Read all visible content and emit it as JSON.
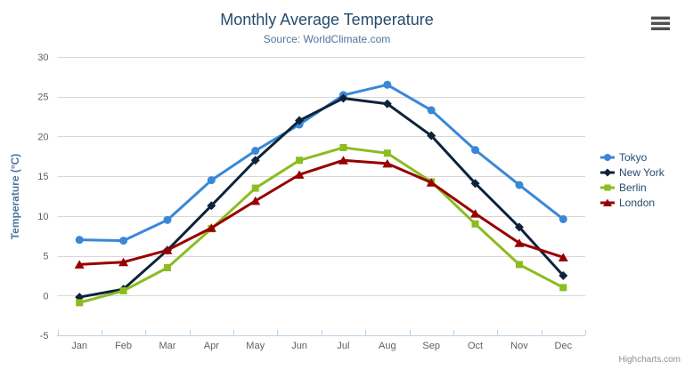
{
  "chart_data": {
    "type": "line",
    "title": "Monthly Average Temperature",
    "subtitle": "Source: WorldClimate.com",
    "categories": [
      "Jan",
      "Feb",
      "Mar",
      "Apr",
      "May",
      "Jun",
      "Jul",
      "Aug",
      "Sep",
      "Oct",
      "Nov",
      "Dec"
    ],
    "series": [
      {
        "name": "Tokyo",
        "color": "#3a87d8",
        "marker": "circle",
        "values": [
          7.0,
          6.9,
          9.5,
          14.5,
          18.2,
          21.5,
          25.2,
          26.5,
          23.3,
          18.3,
          13.9,
          9.6
        ]
      },
      {
        "name": "New York",
        "color": "#0d233a",
        "marker": "diamond",
        "values": [
          -0.2,
          0.8,
          5.7,
          11.3,
          17.0,
          22.0,
          24.8,
          24.1,
          20.1,
          14.1,
          8.6,
          2.5
        ]
      },
      {
        "name": "Berlin",
        "color": "#8bbc21",
        "marker": "square",
        "values": [
          -0.9,
          0.6,
          3.5,
          8.4,
          13.5,
          17.0,
          18.6,
          17.9,
          14.3,
          9.0,
          3.9,
          1.0
        ]
      },
      {
        "name": "London",
        "color": "#970000",
        "marker": "triangle",
        "values": [
          3.9,
          4.2,
          5.7,
          8.5,
          11.9,
          15.2,
          17.0,
          16.6,
          14.2,
          10.3,
          6.6,
          4.8
        ]
      }
    ],
    "xlabel": "",
    "ylabel": "Temperature (°C)",
    "ylim": [
      -5,
      30
    ],
    "yticks": [
      -5,
      0,
      5,
      10,
      15,
      20,
      25,
      30
    ],
    "grid": true,
    "legend_position": "right"
  },
  "credits": {
    "label": "Highcharts.com"
  },
  "icons": {
    "context_menu": "hamburger-icon"
  },
  "colors": {
    "grid_line": "#d8d8d8",
    "axis_line": "#c0d0e0",
    "tick_label": "#606060",
    "title": "#274b6d",
    "subtitle": "#4d759e",
    "axis_title": "#4d759e",
    "credits": "#909090",
    "menu_icon": "#4f4f4f"
  }
}
